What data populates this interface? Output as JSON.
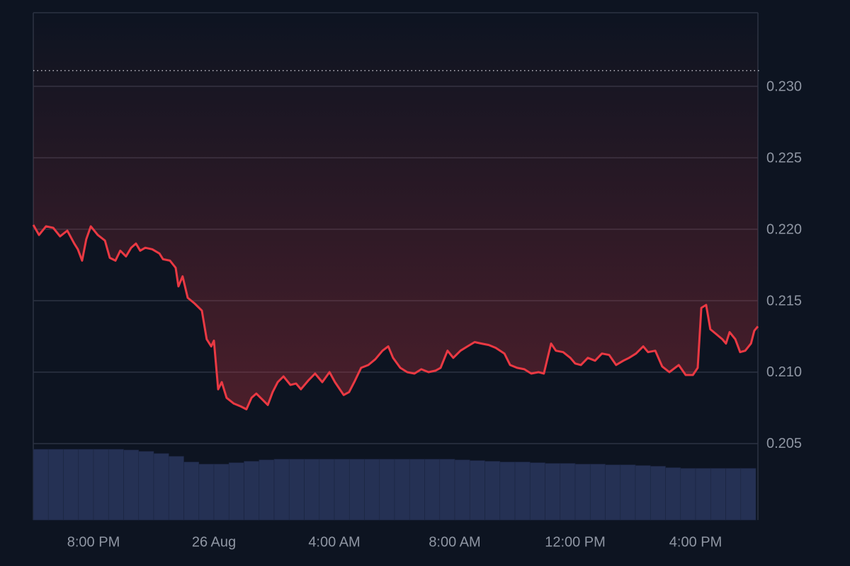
{
  "chart_data": {
    "type": "line",
    "xlim": [
      -6,
      18.07
    ],
    "xticks": [
      {
        "value": -4,
        "label": "8:00 PM"
      },
      {
        "value": 0,
        "label": "26 Aug"
      },
      {
        "value": 4,
        "label": "4:00 AM"
      },
      {
        "value": 8,
        "label": "8:00 AM"
      },
      {
        "value": 12,
        "label": "12:00 PM"
      },
      {
        "value": 16,
        "label": "4:00 PM"
      }
    ],
    "ylim": [
      0.19965,
      0.23515
    ],
    "yticks": [
      0.205,
      {
        "value": 0.21,
        "label": "0.210"
      },
      0.215,
      {
        "value": 0.22,
        "label": "0.220"
      },
      0.225,
      {
        "value": 0.23,
        "label": "0.230"
      }
    ],
    "grid": true,
    "reference_line": 0.2311,
    "series": [
      {
        "color": "#ea3943",
        "x": [
          -6.0,
          -5.81,
          -5.58,
          -5.34,
          -5.11,
          -4.87,
          -4.64,
          -4.52,
          -4.38,
          -4.24,
          -4.09,
          -3.86,
          -3.62,
          -3.46,
          -3.27,
          -3.11,
          -2.92,
          -2.75,
          -2.59,
          -2.45,
          -2.28,
          -2.05,
          -1.81,
          -1.69,
          -1.46,
          -1.27,
          -1.18,
          -1.04,
          -0.87,
          -0.64,
          -0.4,
          -0.24,
          -0.09,
          0.0,
          0.14,
          0.26,
          0.42,
          0.66,
          0.89,
          1.08,
          1.25,
          1.41,
          1.6,
          1.79,
          1.95,
          2.12,
          2.31,
          2.54,
          2.73,
          2.89,
          3.13,
          3.36,
          3.6,
          3.84,
          4.02,
          4.31,
          4.49,
          4.66,
          4.89,
          5.13,
          5.36,
          5.6,
          5.79,
          5.95,
          6.19,
          6.42,
          6.66,
          6.89,
          7.13,
          7.36,
          7.53,
          7.76,
          7.95,
          8.19,
          8.42,
          8.66,
          8.89,
          9.13,
          9.36,
          9.65,
          9.84,
          10.07,
          10.31,
          10.54,
          10.78,
          10.96,
          11.2,
          11.36,
          11.6,
          11.84,
          12.0,
          12.19,
          12.42,
          12.66,
          12.89,
          13.13,
          13.36,
          13.6,
          13.79,
          14.02,
          14.26,
          14.42,
          14.66,
          14.89,
          15.13,
          15.44,
          15.67,
          15.91,
          16.07,
          16.19,
          16.35,
          16.49,
          16.66,
          16.89,
          17.01,
          17.13,
          17.32,
          17.48,
          17.65,
          17.84,
          17.95,
          18.07
        ],
        "values": [
          0.2203,
          0.2196,
          0.2202,
          0.2201,
          0.2195,
          0.2199,
          0.219,
          0.2186,
          0.2178,
          0.2193,
          0.2202,
          0.2196,
          0.2192,
          0.218,
          0.2178,
          0.2185,
          0.2181,
          0.2187,
          0.219,
          0.2185,
          0.2187,
          0.2186,
          0.2183,
          0.2179,
          0.2178,
          0.2173,
          0.216,
          0.2167,
          0.2152,
          0.2148,
          0.2143,
          0.2123,
          0.2118,
          0.2122,
          0.2088,
          0.2093,
          0.2082,
          0.2078,
          0.2076,
          0.2074,
          0.2082,
          0.2085,
          0.2081,
          0.2077,
          0.2086,
          0.2093,
          0.2097,
          0.2091,
          0.2092,
          0.2088,
          0.2094,
          0.2099,
          0.2093,
          0.21,
          0.2093,
          0.2084,
          0.2086,
          0.2093,
          0.2103,
          0.2105,
          0.2109,
          0.2115,
          0.2118,
          0.211,
          0.2103,
          0.21,
          0.2099,
          0.2102,
          0.21,
          0.2101,
          0.2103,
          0.2115,
          0.211,
          0.2115,
          0.2118,
          0.2121,
          0.212,
          0.2119,
          0.2117,
          0.2113,
          0.2105,
          0.2103,
          0.2102,
          0.2099,
          0.21,
          0.2099,
          0.212,
          0.2115,
          0.2114,
          0.211,
          0.2106,
          0.2105,
          0.211,
          0.2108,
          0.2113,
          0.2112,
          0.2105,
          0.2108,
          0.211,
          0.2113,
          0.2118,
          0.2114,
          0.2115,
          0.2104,
          0.21,
          0.2105,
          0.2098,
          0.2098,
          0.2103,
          0.2145,
          0.2147,
          0.213,
          0.2127,
          0.2123,
          0.212,
          0.2128,
          0.2123,
          0.2114,
          0.2115,
          0.212,
          0.2129,
          0.2132
        ]
      }
    ],
    "volume": {
      "color": "#253154",
      "ylim": [
        0,
        717
      ],
      "x": [
        -5.75,
        -5.25,
        -4.75,
        -4.25,
        -3.75,
        -3.25,
        -2.75,
        -2.25,
        -1.75,
        -1.25,
        -0.75,
        -0.25,
        0.25,
        0.75,
        1.25,
        1.75,
        2.25,
        2.75,
        3.25,
        3.75,
        4.25,
        4.75,
        5.25,
        5.75,
        6.25,
        6.75,
        7.25,
        7.75,
        8.25,
        8.75,
        9.25,
        9.75,
        10.25,
        10.75,
        11.25,
        11.75,
        12.25,
        12.75,
        13.25,
        13.75,
        14.25,
        14.75,
        15.25,
        15.75,
        16.25,
        16.75,
        17.25,
        17.75
      ],
      "values": [
        100,
        100,
        100,
        100,
        100,
        100,
        99,
        97,
        94,
        90,
        82,
        79,
        79,
        81,
        83,
        85,
        86,
        86,
        86,
        86,
        86,
        86,
        86,
        86,
        86,
        86,
        86,
        86,
        85,
        84,
        83,
        82,
        82,
        81,
        80,
        80,
        79,
        79,
        78,
        78,
        77,
        76,
        74,
        73,
        73,
        73,
        73,
        73
      ]
    }
  }
}
